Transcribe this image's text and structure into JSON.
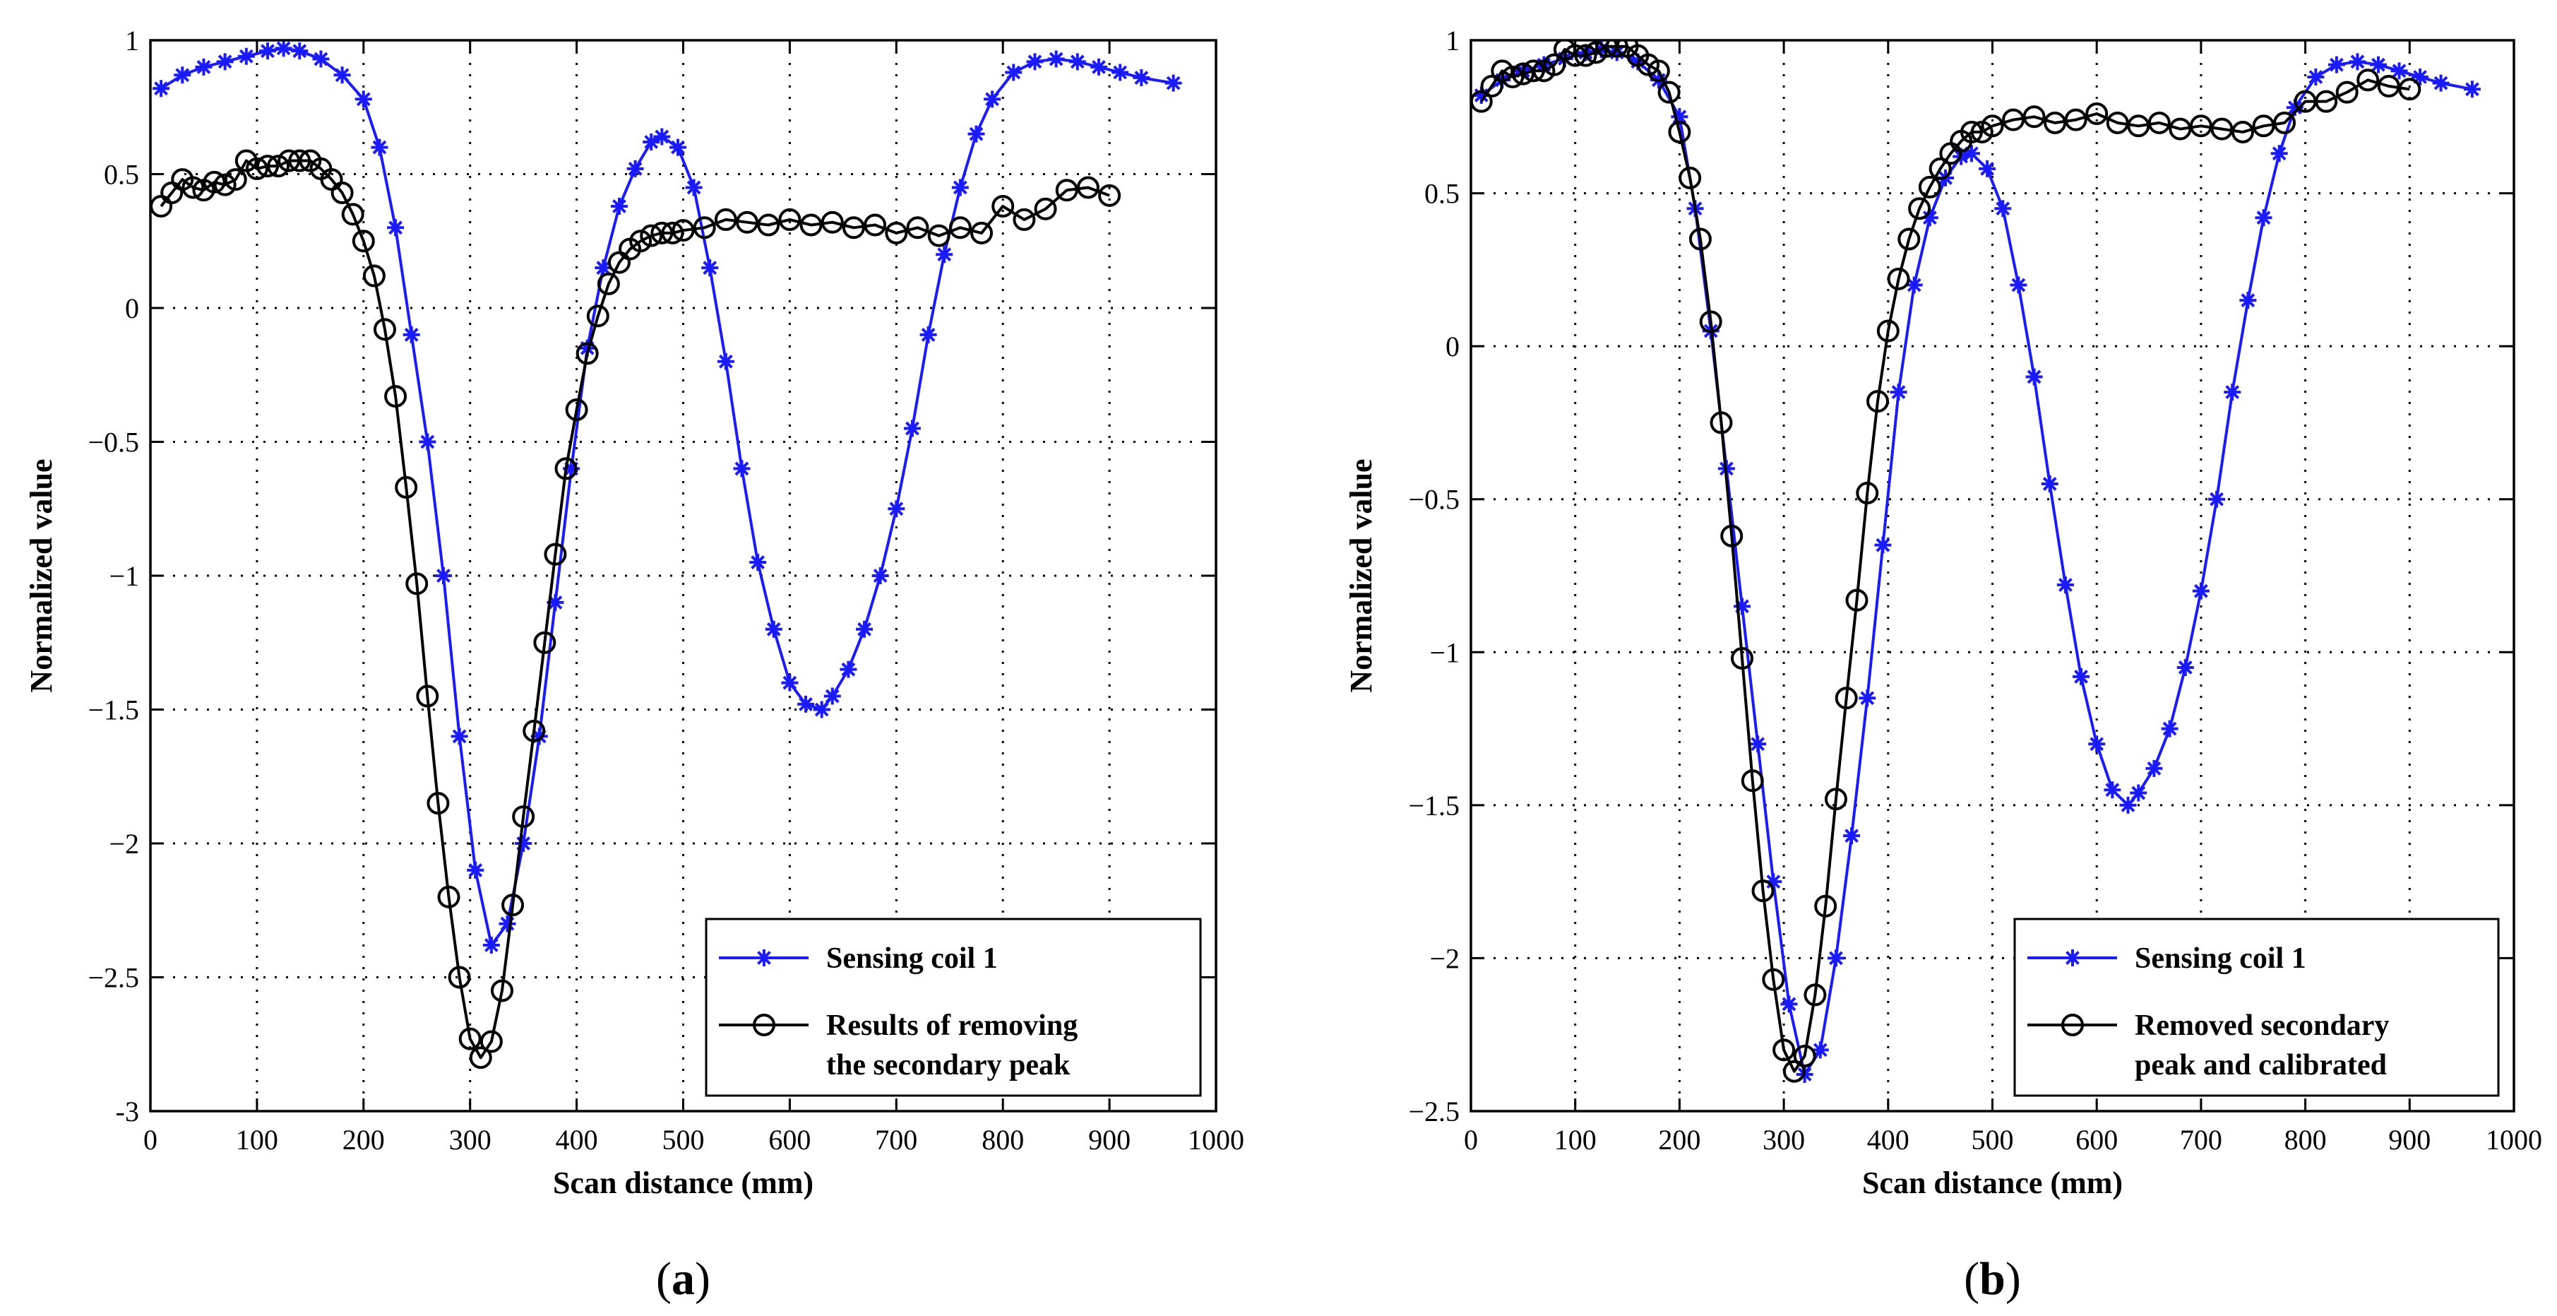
{
  "chart_data": [
    {
      "type": "line",
      "panel_label": "a",
      "xlabel": "Scan distance (mm)",
      "ylabel": "Normalized value",
      "xlim": [
        0,
        1000
      ],
      "ylim": [
        -3,
        1
      ],
      "xticks": [
        0,
        100,
        200,
        300,
        400,
        500,
        600,
        700,
        800,
        900,
        1000
      ],
      "xtick_labels": [
        "0",
        "100",
        "200",
        "300",
        "400",
        "500",
        "600",
        "700",
        "800",
        "900",
        "1000"
      ],
      "yticks": [
        -3,
        -2.5,
        -2,
        -1.5,
        -1,
        -0.5,
        0,
        0.5,
        1
      ],
      "ytick_labels": [
        "-3",
        "−2.5",
        "−2",
        "−1.5",
        "−1",
        "−0.5",
        "0",
        "0.5",
        "1"
      ],
      "grid": true,
      "legend_position": "bottom-right",
      "series": [
        {
          "name": "Sensing coil 1",
          "legend_lines": [
            "Sensing coil 1"
          ],
          "color": "#1a1aff",
          "marker": "star",
          "x": [
            10,
            30,
            50,
            70,
            90,
            110,
            125,
            140,
            160,
            180,
            200,
            215,
            230,
            245,
            260,
            275,
            290,
            305,
            320,
            335,
            350,
            365,
            380,
            395,
            410,
            425,
            440,
            455,
            470,
            480,
            495,
            510,
            525,
            540,
            555,
            570,
            585,
            600,
            615,
            630,
            640,
            655,
            670,
            685,
            700,
            715,
            730,
            745,
            760,
            775,
            790,
            810,
            830,
            850,
            870,
            890,
            910,
            930,
            960
          ],
          "values": [
            0.82,
            0.87,
            0.9,
            0.92,
            0.94,
            0.96,
            0.97,
            0.96,
            0.93,
            0.87,
            0.78,
            0.6,
            0.3,
            -0.1,
            -0.5,
            -1.0,
            -1.6,
            -2.1,
            -2.38,
            -2.3,
            -2.0,
            -1.6,
            -1.1,
            -0.6,
            -0.15,
            0.15,
            0.38,
            0.52,
            0.62,
            0.64,
            0.6,
            0.45,
            0.15,
            -0.2,
            -0.6,
            -0.95,
            -1.2,
            -1.4,
            -1.48,
            -1.5,
            -1.45,
            -1.35,
            -1.2,
            -1.0,
            -0.75,
            -0.45,
            -0.1,
            0.2,
            0.45,
            0.65,
            0.78,
            0.88,
            0.92,
            0.93,
            0.92,
            0.9,
            0.88,
            0.86,
            0.84
          ]
        },
        {
          "name": "Results of removing the secondary peak",
          "legend_lines": [
            "Results of removing",
            "the secondary peak"
          ],
          "color": "#000000",
          "marker": "circle",
          "x": [
            10,
            20,
            30,
            40,
            50,
            60,
            70,
            80,
            90,
            100,
            110,
            120,
            130,
            140,
            150,
            160,
            170,
            180,
            190,
            200,
            210,
            220,
            230,
            240,
            250,
            260,
            270,
            280,
            290,
            300,
            310,
            320,
            330,
            340,
            350,
            360,
            370,
            380,
            390,
            400,
            410,
            420,
            430,
            440,
            450,
            460,
            470,
            480,
            490,
            500,
            520,
            540,
            560,
            580,
            600,
            620,
            640,
            660,
            680,
            700,
            720,
            740,
            760,
            780,
            800,
            820,
            840,
            860,
            880,
            900
          ],
          "values": [
            0.38,
            0.43,
            0.48,
            0.45,
            0.44,
            0.47,
            0.46,
            0.48,
            0.55,
            0.52,
            0.53,
            0.53,
            0.55,
            0.55,
            0.55,
            0.52,
            0.48,
            0.43,
            0.35,
            0.25,
            0.12,
            -0.08,
            -0.33,
            -0.67,
            -1.03,
            -1.45,
            -1.85,
            -2.2,
            -2.5,
            -2.73,
            -2.8,
            -2.74,
            -2.55,
            -2.23,
            -1.9,
            -1.58,
            -1.25,
            -0.92,
            -0.6,
            -0.38,
            -0.17,
            -0.03,
            0.09,
            0.17,
            0.22,
            0.25,
            0.27,
            0.28,
            0.28,
            0.29,
            0.3,
            0.33,
            0.32,
            0.31,
            0.33,
            0.31,
            0.32,
            0.3,
            0.31,
            0.28,
            0.3,
            0.27,
            0.3,
            0.28,
            0.38,
            0.33,
            0.37,
            0.44,
            0.45,
            0.42
          ]
        }
      ]
    },
    {
      "type": "line",
      "panel_label": "b",
      "xlabel": "Scan distance (mm)",
      "ylabel": "Normalized value",
      "xlim": [
        0,
        1000
      ],
      "ylim": [
        -2.5,
        1
      ],
      "xticks": [
        0,
        100,
        200,
        300,
        400,
        500,
        600,
        700,
        800,
        900,
        1000
      ],
      "xtick_labels": [
        "0",
        "100",
        "200",
        "300",
        "400",
        "500",
        "600",
        "700",
        "800",
        "900",
        "1000"
      ],
      "yticks": [
        -2.5,
        -2,
        -1.5,
        -1,
        -0.5,
        0,
        0.5,
        1
      ],
      "ytick_labels": [
        "−2.5",
        "−2",
        "−1.5",
        "−1",
        "−0.5",
        "0",
        "0.5",
        "1"
      ],
      "grid": true,
      "legend_position": "bottom-right",
      "series": [
        {
          "name": "Sensing coil 1",
          "legend_lines": [
            "Sensing coil 1"
          ],
          "color": "#1a1aff",
          "marker": "star",
          "x": [
            10,
            30,
            50,
            70,
            90,
            110,
            125,
            140,
            160,
            180,
            200,
            215,
            230,
            245,
            260,
            275,
            290,
            305,
            320,
            335,
            350,
            365,
            380,
            395,
            410,
            425,
            440,
            455,
            470,
            480,
            495,
            510,
            525,
            540,
            555,
            570,
            585,
            600,
            615,
            630,
            640,
            655,
            670,
            685,
            700,
            715,
            730,
            745,
            760,
            775,
            790,
            810,
            830,
            850,
            870,
            890,
            910,
            930,
            960
          ],
          "values": [
            0.82,
            0.87,
            0.9,
            0.92,
            0.94,
            0.96,
            0.97,
            0.96,
            0.93,
            0.87,
            0.75,
            0.45,
            0.05,
            -0.4,
            -0.85,
            -1.3,
            -1.75,
            -2.15,
            -2.38,
            -2.3,
            -2.0,
            -1.6,
            -1.15,
            -0.65,
            -0.15,
            0.2,
            0.42,
            0.55,
            0.62,
            0.63,
            0.58,
            0.45,
            0.2,
            -0.1,
            -0.45,
            -0.78,
            -1.08,
            -1.3,
            -1.45,
            -1.5,
            -1.46,
            -1.38,
            -1.25,
            -1.05,
            -0.8,
            -0.5,
            -0.15,
            0.15,
            0.42,
            0.63,
            0.78,
            0.88,
            0.92,
            0.93,
            0.92,
            0.9,
            0.88,
            0.86,
            0.84
          ]
        },
        {
          "name": "Removed secondary peak and calibrated",
          "legend_lines": [
            "Removed secondary",
            "peak and calibrated"
          ],
          "color": "#000000",
          "marker": "circle",
          "x": [
            10,
            20,
            30,
            40,
            50,
            60,
            70,
            80,
            90,
            100,
            110,
            120,
            130,
            140,
            150,
            160,
            170,
            180,
            190,
            200,
            210,
            220,
            230,
            240,
            250,
            260,
            270,
            280,
            290,
            300,
            310,
            320,
            330,
            340,
            350,
            360,
            370,
            380,
            390,
            400,
            410,
            420,
            430,
            440,
            450,
            460,
            470,
            480,
            490,
            500,
            520,
            540,
            560,
            580,
            600,
            620,
            640,
            660,
            680,
            700,
            720,
            740,
            760,
            780,
            800,
            820,
            840,
            860,
            880,
            900
          ],
          "values": [
            0.8,
            0.85,
            0.9,
            0.88,
            0.89,
            0.9,
            0.9,
            0.92,
            0.97,
            0.95,
            0.95,
            0.96,
            0.98,
            0.98,
            0.98,
            0.95,
            0.92,
            0.9,
            0.83,
            0.7,
            0.55,
            0.35,
            0.08,
            -0.25,
            -0.62,
            -1.02,
            -1.42,
            -1.78,
            -2.07,
            -2.3,
            -2.37,
            -2.32,
            -2.12,
            -1.83,
            -1.48,
            -1.15,
            -0.83,
            -0.48,
            -0.18,
            0.05,
            0.22,
            0.35,
            0.45,
            0.52,
            0.58,
            0.63,
            0.67,
            0.7,
            0.7,
            0.72,
            0.74,
            0.75,
            0.73,
            0.74,
            0.76,
            0.73,
            0.72,
            0.73,
            0.71,
            0.72,
            0.71,
            0.7,
            0.72,
            0.73,
            0.8,
            0.8,
            0.83,
            0.87,
            0.85,
            0.84
          ]
        }
      ]
    }
  ]
}
